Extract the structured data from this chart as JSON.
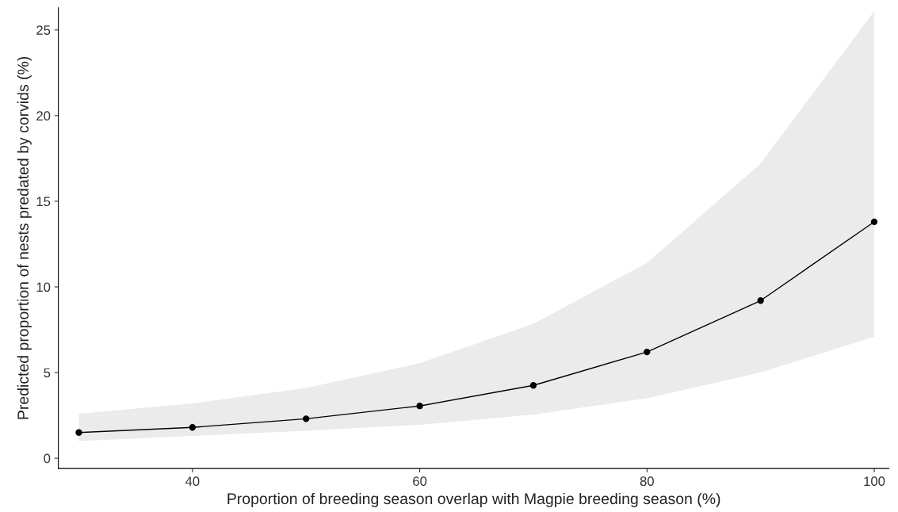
{
  "chart_data": {
    "type": "line",
    "xlabel": "Proportion of breeding season overlap with Magpie breeding season (%)",
    "ylabel": "Predicted proportion of nests predated by corvids (%)",
    "x": [
      30,
      40,
      50,
      60,
      70,
      80,
      90,
      100
    ],
    "series": [
      {
        "color": "#000000",
        "values": [
          1.5,
          1.8,
          2.3,
          3.05,
          4.25,
          6.2,
          9.2,
          13.8
        ],
        "lower": [
          1.0,
          1.3,
          1.6,
          1.95,
          2.55,
          3.5,
          5.0,
          7.1
        ],
        "upper": [
          2.6,
          3.2,
          4.1,
          5.55,
          7.85,
          11.4,
          17.2,
          26.1
        ]
      }
    ],
    "xlim": [
      28.2,
      101.3
    ],
    "ylim": [
      -0.6,
      26.3
    ],
    "xticks": [
      40,
      60,
      80,
      100
    ],
    "yticks": [
      0,
      5,
      10,
      15,
      20,
      25
    ],
    "grid": false,
    "legend": false,
    "marker": "circle",
    "line_style": "solid"
  }
}
